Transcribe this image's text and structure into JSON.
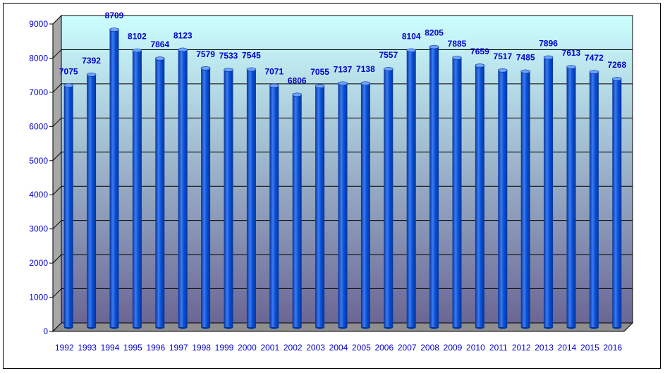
{
  "chart_data": {
    "type": "bar",
    "categories": [
      "1992",
      "1993",
      "1994",
      "1995",
      "1996",
      "1997",
      "1998",
      "1999",
      "2000",
      "2001",
      "2002",
      "2003",
      "2004",
      "2005",
      "2006",
      "2007",
      "2008",
      "2009",
      "2010",
      "2011",
      "2012",
      "2013",
      "2014",
      "2015",
      "2016"
    ],
    "values": [
      7075,
      7392,
      8709,
      8102,
      7864,
      8123,
      7579,
      7533,
      7545,
      7071,
      6806,
      7055,
      7137,
      7138,
      7557,
      8104,
      8205,
      7885,
      7659,
      7517,
      7485,
      7896,
      7613,
      7472,
      7268
    ],
    "ylim": [
      0,
      9000
    ],
    "yticks": [
      0,
      1000,
      2000,
      3000,
      4000,
      5000,
      6000,
      7000,
      8000,
      9000
    ],
    "grid": true,
    "legend": "none",
    "colors": {
      "bar": "#0b52d6",
      "bar_dark": "#06339a",
      "bar_light": "#6ea3ff",
      "text": "#0000cc",
      "wall_top": "#ccffff",
      "wall_bottom": "#6b6694"
    }
  }
}
